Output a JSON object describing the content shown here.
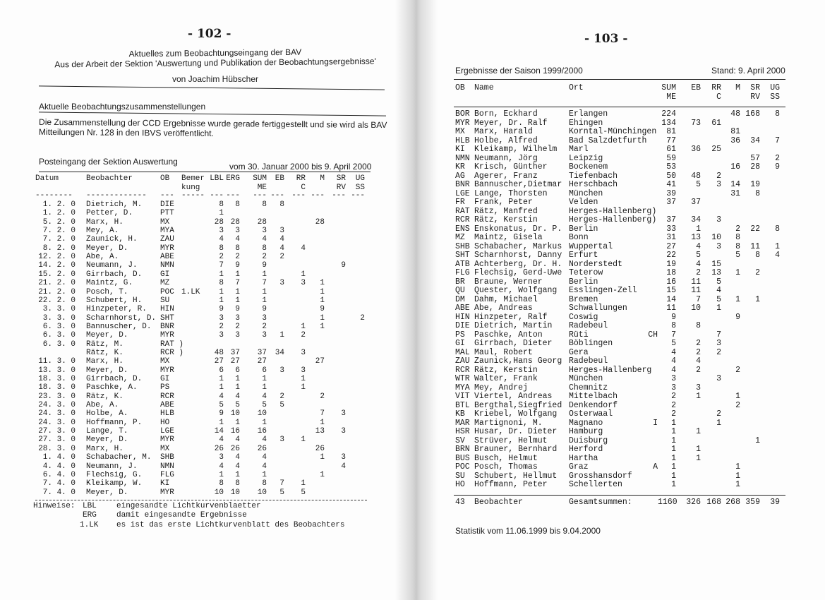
{
  "left": {
    "page_number": "- 102 -",
    "title_1": "Aktuelles zum Beobachtungseingang der BAV",
    "title_2": "Aus der Arbeit der Sektion 'Auswertung und Publikation der Beobachtungsergebnisse'",
    "author": "von Joachim Hübscher",
    "section_heading": "Aktuelle Beobachtungszusammenstellungen",
    "paragraph": "Die Zusammenstellung der CCD Ergebnisse wurde gerade fertiggestellt und sie wird als BAV Mitteilungen Nr. 128 in den IBVS veröffentlicht.",
    "posteingang_label": "Posteingang der Sektion Auswertung",
    "posteingang_period": "vom 30. Januar 2000 bis 9. April 2000",
    "columns": [
      [
        "Datum",
        ""
      ],
      [
        "Beobachter",
        ""
      ],
      [
        "OB",
        ""
      ],
      [
        "Bemer",
        "kung"
      ],
      [
        "LBL",
        ""
      ],
      [
        "ERG",
        ""
      ],
      [
        "SUM",
        "ME"
      ],
      [
        "EB",
        ""
      ],
      [
        "RR",
        "C"
      ],
      [
        "M",
        ""
      ],
      [
        "SR",
        "RV"
      ],
      [
        "UG",
        "SS"
      ]
    ],
    "header_dashes": [
      "--------",
      "-------------",
      "---",
      "-----",
      "---",
      "---",
      "---",
      "---",
      "---",
      "---",
      "---",
      "---"
    ],
    "rows": [
      [
        "1. 2. 0",
        "Dietrich, M.",
        "DIE",
        "",
        "8",
        "8",
        "8",
        "8",
        "",
        "",
        "",
        ""
      ],
      [
        "1. 2. 0",
        "Petter, D.",
        "PTT",
        "",
        "1",
        "",
        "",
        "",
        "",
        "",
        "",
        ""
      ],
      [
        "5. 2. 0",
        "Marx, H.",
        "MX",
        "",
        "28",
        "28",
        "28",
        "",
        "",
        "28",
        "",
        ""
      ],
      [
        "7. 2. 0",
        "Mey, A.",
        "MYA",
        "",
        "3",
        "3",
        "3",
        "3",
        "",
        "",
        "",
        ""
      ],
      [
        "7. 2. 0",
        "Zaunick, H.",
        "ZAU",
        "",
        "4",
        "4",
        "4",
        "4",
        "",
        "",
        "",
        ""
      ],
      [
        "8. 2. 0",
        "Meyer, D.",
        "MYR",
        "",
        "8",
        "8",
        "8",
        "4",
        "4",
        "",
        "",
        ""
      ],
      [
        "12. 2. 0",
        "Abe, A.",
        "ABE",
        "",
        "2",
        "2",
        "2",
        "2",
        "",
        "",
        "",
        ""
      ],
      [
        "14. 2. 0",
        "Neumann, J.",
        "NMN",
        "",
        "7",
        "9",
        "9",
        "",
        "",
        "",
        "9",
        ""
      ],
      [
        "15. 2. 0",
        "Girrbach, D.",
        "GI",
        "",
        "1",
        "1",
        "1",
        "",
        "1",
        "",
        "",
        ""
      ],
      [
        "21. 2. 0",
        "Maintz, G.",
        "MZ",
        "",
        "8",
        "7",
        "7",
        "3",
        "3",
        "1",
        "",
        ""
      ],
      [
        "21. 2. 0",
        "Posch, T.",
        "POC",
        "1.LK",
        "1",
        "1",
        "1",
        "",
        "",
        "1",
        "",
        ""
      ],
      [
        "22. 2. 0",
        "Schubert, H.",
        "SU",
        "",
        "1",
        "1",
        "1",
        "",
        "",
        "1",
        "",
        ""
      ],
      [
        "3. 3. 0",
        "Hinzpeter, R.",
        "HIN",
        "",
        "9",
        "9",
        "9",
        "",
        "",
        "9",
        "",
        ""
      ],
      [
        "3. 3. 0",
        "Scharnhorst, D.",
        "SHT",
        "",
        "3",
        "3",
        "3",
        "",
        "",
        "1",
        "",
        "2"
      ],
      [
        "6. 3. 0",
        "Bannuscher, D.",
        "BNR",
        "",
        "2",
        "2",
        "2",
        "",
        "1",
        "1",
        "",
        ""
      ],
      [
        "6. 3. 0",
        "Meyer, D.",
        "MYR",
        "",
        "3",
        "3",
        "3",
        "1",
        "2",
        "",
        "",
        ""
      ],
      [
        "6. 3. 0",
        "Rätz, M.",
        "RAT )",
        "",
        "",
        "",
        "",
        "",
        "",
        "",
        "",
        ""
      ],
      [
        "",
        "Rätz, K.",
        "RCR )",
        "",
        "48",
        "37",
        "37",
        "34",
        "3",
        "",
        "",
        ""
      ],
      [
        "11. 3. 0",
        "Marx, H.",
        "MX",
        "",
        "27",
        "27",
        "27",
        "",
        "",
        "27",
        "",
        ""
      ],
      [
        "13. 3. 0",
        "Meyer, D.",
        "MYR",
        "",
        "6",
        "6",
        "6",
        "3",
        "3",
        "",
        "",
        ""
      ],
      [
        "18. 3. 0",
        "Girrbach, D.",
        "GI",
        "",
        "1",
        "1",
        "1",
        "",
        "1",
        "",
        "",
        ""
      ],
      [
        "18. 3. 0",
        "Paschke, A.",
        "PS",
        "",
        "1",
        "1",
        "1",
        "",
        "1",
        "",
        "",
        ""
      ],
      [
        "23. 3. 0",
        "Rätz, K.",
        "RCR",
        "",
        "4",
        "4",
        "4",
        "2",
        "",
        "2",
        "",
        ""
      ],
      [
        "24. 3. 0",
        "Abe, A.",
        "ABE",
        "",
        "5",
        "5",
        "5",
        "5",
        "",
        "",
        "",
        ""
      ],
      [
        "24. 3. 0",
        "Holbe, A.",
        "HLB",
        "",
        "9",
        "10",
        "10",
        "",
        "",
        "7",
        "3",
        ""
      ],
      [
        "24. 3. 0",
        "Hoffmann, P.",
        "HO",
        "",
        "1",
        "1",
        "1",
        "",
        "",
        "1",
        "",
        ""
      ],
      [
        "27. 3. 0",
        "Lange, T.",
        "LGE",
        "",
        "14",
        "16",
        "16",
        "",
        "",
        "13",
        "3",
        ""
      ],
      [
        "27. 3. 0",
        "Meyer, D.",
        "MYR",
        "",
        "4",
        "4",
        "4",
        "3",
        "1",
        "",
        "",
        ""
      ],
      [
        "28. 3. 0",
        "Marx, H.",
        "MX",
        "",
        "26",
        "26",
        "26",
        "",
        "",
        "26",
        "",
        ""
      ],
      [
        "1. 4. 0",
        "Schabacher, M.",
        "SHB",
        "",
        "3",
        "4",
        "4",
        "",
        "",
        "1",
        "3",
        ""
      ],
      [
        "4. 4. 0",
        "Neumann, J.",
        "NMN",
        "",
        "4",
        "4",
        "4",
        "",
        "",
        "",
        "4",
        ""
      ],
      [
        "6. 4. 0",
        "Flechsig, G.",
        "FLG",
        "",
        "1",
        "1",
        "1",
        "",
        "",
        "1",
        "",
        ""
      ],
      [
        "7. 4. 0",
        "Kleikamp, W.",
        "KI",
        "",
        "8",
        "8",
        "8",
        "7",
        "1",
        "",
        "",
        ""
      ],
      [
        "7. 4. 0",
        "Meyer, D.",
        "MYR",
        "",
        "10",
        "10",
        "10",
        "5",
        "5",
        "",
        "",
        ""
      ]
    ],
    "notes_label": "Hinweise:",
    "notes": [
      [
        "LBL",
        "eingesandte Lichtkurvenblaetter"
      ],
      [
        "ERG",
        "damit eingesandte Ergebnisse"
      ],
      [
        "1.LK",
        "es ist das erste Lichtkurvenblatt des Beobachters"
      ]
    ]
  },
  "right": {
    "page_number": "- 103 -",
    "title": "Ergebnisse der Saison 1999/2000",
    "status": "Stand: 9. April 2000",
    "columns": [
      [
        "OB",
        ""
      ],
      [
        "Name",
        ""
      ],
      [
        "Ort",
        ""
      ],
      [
        "",
        ""
      ],
      [
        "SUM",
        "ME"
      ],
      [
        "EB",
        ""
      ],
      [
        "RR",
        "C"
      ],
      [
        "M",
        ""
      ],
      [
        "SR",
        "RV"
      ],
      [
        "UG",
        "SS"
      ]
    ],
    "rows": [
      [
        "BOR",
        "Born, Eckhard",
        "Erlangen",
        "",
        "224",
        "",
        "",
        "48",
        "168",
        "8"
      ],
      [
        "MYR",
        "Meyer, Dr. Ralf",
        "Ehingen",
        "",
        "134",
        "73",
        "61",
        "",
        "",
        ""
      ],
      [
        "MX",
        "Marx, Harald",
        "Korntal-Münchingen",
        "",
        "81",
        "",
        "",
        "81",
        "",
        ""
      ],
      [
        "HLB",
        "Holbe, Alfred",
        "Bad Salzdetfurth",
        "",
        "77",
        "",
        "",
        "36",
        "34",
        "7"
      ],
      [
        "KI",
        "Kleikamp, Wilhelm",
        "Marl",
        "",
        "61",
        "36",
        "25",
        "",
        "",
        ""
      ],
      [
        "NMN",
        "Neumann, Jörg",
        "Leipzig",
        "",
        "59",
        "",
        "",
        "",
        "57",
        "2"
      ],
      [
        "KR",
        "Krisch, Günther",
        "Bockenem",
        "",
        "53",
        "",
        "",
        "16",
        "28",
        "9"
      ],
      [
        "AG",
        "Agerer, Franz",
        "Tiefenbach",
        "",
        "50",
        "48",
        "2",
        "",
        "",
        ""
      ],
      [
        "BNR",
        "Bannuscher,Dietmar",
        "Herschbach",
        "",
        "41",
        "5",
        "3",
        "14",
        "19",
        ""
      ],
      [
        "LGE",
        "Lange, Thorsten",
        "München",
        "",
        "39",
        "",
        "",
        "31",
        "8",
        ""
      ],
      [
        "FR",
        "Frank, Peter",
        "Velden",
        "",
        "37",
        "37",
        "",
        "",
        "",
        ""
      ],
      [
        "RAT",
        "Rätz, Manfred",
        "Herges-Hallenberg)",
        "",
        "",
        "",
        "",
        "",
        "",
        ""
      ],
      [
        "RCR",
        "Rätz, Kerstin",
        "Herges-Hallenberg)",
        "",
        "37",
        "34",
        "3",
        "",
        "",
        ""
      ],
      [
        "ENS",
        "Enskonatus, Dr. P.",
        "Berlin",
        "",
        "33",
        "1",
        "",
        "2",
        "22",
        "8"
      ],
      [
        "MZ",
        "Maintz, Gisela",
        "Bonn",
        "",
        "31",
        "13",
        "10",
        "8",
        "",
        ""
      ],
      [
        "SHB",
        "Schabacher, Markus",
        "Wuppertal",
        "",
        "27",
        "4",
        "3",
        "8",
        "11",
        "1"
      ],
      [
        "SHT",
        "Scharnhorst, Danny",
        "Erfurt",
        "",
        "22",
        "5",
        "",
        "5",
        "8",
        "4"
      ],
      [
        "ATB",
        "Achterberg, Dr. H.",
        "Norderstedt",
        "",
        "19",
        "4",
        "15",
        "",
        "",
        ""
      ],
      [
        "FLG",
        "Flechsig, Gerd-Uwe",
        "Teterow",
        "",
        "18",
        "2",
        "13",
        "1",
        "2",
        ""
      ],
      [
        "BR",
        "Braune, Werner",
        "Berlin",
        "",
        "16",
        "11",
        "5",
        "",
        "",
        ""
      ],
      [
        "QU",
        "Quester, Wolfgang",
        "Esslingen-Zell",
        "",
        "15",
        "11",
        "4",
        "",
        "",
        ""
      ],
      [
        "DM",
        "Dahm, Michael",
        "Bremen",
        "",
        "14",
        "7",
        "5",
        "1",
        "1",
        ""
      ],
      [
        "ABE",
        "Abe, Andreas",
        "Schwallungen",
        "",
        "11",
        "10",
        "1",
        "",
        "",
        ""
      ],
      [
        "HIN",
        "Hinzpeter, Ralf",
        "Coswig",
        "",
        "9",
        "",
        "",
        "9",
        "",
        ""
      ],
      [
        "DIE",
        "Dietrich, Martin",
        "Radebeul",
        "",
        "8",
        "8",
        "",
        "",
        "",
        ""
      ],
      [
        "PS",
        "Paschke, Anton",
        "Rüti",
        "CH",
        "7",
        "",
        "7",
        "",
        "",
        ""
      ],
      [
        "GI",
        "Girrbach, Dieter",
        "Böblingen",
        "",
        "5",
        "2",
        "3",
        "",
        "",
        ""
      ],
      [
        "MAL",
        "Maul, Robert",
        "Gera",
        "",
        "4",
        "2",
        "2",
        "",
        "",
        ""
      ],
      [
        "ZAU",
        "Zaunick,Hans Georg",
        "Radebeul",
        "",
        "4",
        "4",
        "",
        "",
        "",
        ""
      ],
      [
        "RCR",
        "Rätz, Kerstin",
        "Herges-Hallenberg",
        "",
        "4",
        "2",
        "",
        "2",
        "",
        ""
      ],
      [
        "WTR",
        "Walter, Frank",
        "München",
        "",
        "3",
        "",
        "3",
        "",
        "",
        ""
      ],
      [
        "MYA",
        "Mey, Andrej",
        "Chemnitz",
        "",
        "3",
        "3",
        "",
        "",
        "",
        ""
      ],
      [
        "VIT",
        "Viertel, Andreas",
        "Mittelbach",
        "",
        "2",
        "1",
        "",
        "1",
        "",
        ""
      ],
      [
        "BTL",
        "Bergthal,Siegfried",
        "Denkendorf",
        "",
        "2",
        "",
        "",
        "2",
        "",
        ""
      ],
      [
        "KB",
        "Kriebel, Wolfgang",
        "Osterwaal",
        "",
        "2",
        "",
        "2",
        "",
        "",
        ""
      ],
      [
        "MAR",
        "Martignoni, M.",
        "Magnano",
        "I",
        "1",
        "",
        "1",
        "",
        "",
        ""
      ],
      [
        "HSR",
        "Husar, Dr. Dieter",
        "Hamburg",
        "",
        "1",
        "1",
        "",
        "",
        "",
        ""
      ],
      [
        "SV",
        "Strüver, Helmut",
        "Duisburg",
        "",
        "1",
        "",
        "",
        "",
        "1",
        ""
      ],
      [
        "BRN",
        "Brauner, Bernhard",
        "Herford",
        "",
        "1",
        "1",
        "",
        "",
        "",
        ""
      ],
      [
        "BUS",
        "Busch, Helmut",
        "Hartha",
        "",
        "1",
        "1",
        "",
        "",
        "",
        ""
      ],
      [
        "POC",
        "Posch, Thomas",
        "Graz",
        "A",
        "1",
        "",
        "",
        "1",
        "",
        ""
      ],
      [
        "SU",
        "Schubert, Hellmut",
        "Grosshansdorf",
        "",
        "1",
        "",
        "",
        "1",
        "",
        ""
      ],
      [
        "HO",
        "Hoffmann, Peter",
        "Schellerten",
        "",
        "1",
        "",
        "",
        "1",
        "",
        ""
      ]
    ],
    "totals": [
      "43",
      "Beobachter",
      "Gesamtsummen:",
      "",
      "1160",
      "326",
      "168",
      "268",
      "359",
      "39"
    ],
    "statistik": "Statistik vom  11.06.1999  bis  9.04.2000"
  }
}
